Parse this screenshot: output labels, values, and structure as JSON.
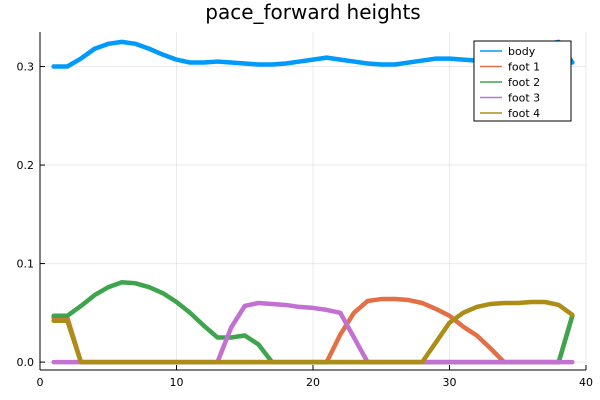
{
  "chart_data": {
    "type": "line",
    "title": "pace_forward heights",
    "xlabel": "",
    "ylabel": "",
    "xlim": [
      0,
      40
    ],
    "ylim": [
      -0.008,
      0.335
    ],
    "xticks": [
      0,
      10,
      20,
      30,
      40
    ],
    "xtick_labels": [
      "0",
      "10",
      "20",
      "30",
      "40"
    ],
    "yticks": [
      0.0,
      0.1,
      0.2,
      0.3
    ],
    "ytick_labels": [
      "0.0",
      "0.1",
      "0.2",
      "0.3"
    ],
    "grid": true,
    "legend_position": "top-right",
    "x": [
      1,
      2,
      3,
      4,
      5,
      6,
      7,
      8,
      9,
      10,
      11,
      12,
      13,
      14,
      15,
      16,
      17,
      18,
      19,
      20,
      21,
      22,
      23,
      24,
      25,
      26,
      27,
      28,
      29,
      30,
      31,
      32,
      33,
      34,
      35,
      36,
      37,
      38,
      39
    ],
    "series": [
      {
        "name": "body",
        "color": "#009AFA",
        "values": [
          0.3,
          0.3,
          0.308,
          0.318,
          0.323,
          0.325,
          0.323,
          0.318,
          0.312,
          0.307,
          0.304,
          0.304,
          0.305,
          0.304,
          0.303,
          0.302,
          0.302,
          0.303,
          0.305,
          0.307,
          0.309,
          0.307,
          0.305,
          0.303,
          0.302,
          0.302,
          0.304,
          0.306,
          0.308,
          0.308,
          0.307,
          0.306,
          0.306,
          0.306,
          0.309,
          0.315,
          0.322,
          0.325,
          0.304
        ]
      },
      {
        "name": "foot 1",
        "color": "#E36F47",
        "values": [
          0.045,
          0.045,
          0,
          0,
          0,
          0,
          0,
          0,
          0,
          0,
          0,
          0,
          0,
          0,
          0,
          0,
          0,
          0,
          0,
          0,
          0,
          0.028,
          0.05,
          0.062,
          0.064,
          0.064,
          0.063,
          0.06,
          0.054,
          0.047,
          0.036,
          0.027,
          0.014,
          0,
          0,
          0,
          0,
          0,
          0.047
        ]
      },
      {
        "name": "foot 2",
        "color": "#3EA44E",
        "values": [
          0.047,
          0.047,
          0.057,
          0.068,
          0.076,
          0.081,
          0.08,
          0.076,
          0.07,
          0.061,
          0.05,
          0.037,
          0.025,
          0.025,
          0.027,
          0.018,
          0,
          0,
          0,
          0,
          0,
          0,
          0,
          0,
          0,
          0,
          0,
          0,
          0,
          0,
          0,
          0,
          0,
          0,
          0,
          0,
          0,
          0,
          0.047
        ]
      },
      {
        "name": "foot 3",
        "color": "#C271D2",
        "values": [
          0,
          0,
          0,
          0,
          0,
          0,
          0,
          0,
          0,
          0,
          0,
          0,
          0,
          0.035,
          0.057,
          0.06,
          0.059,
          0.058,
          0.056,
          0.055,
          0.053,
          0.05,
          0.025,
          0,
          0,
          0,
          0,
          0,
          0,
          0,
          0,
          0,
          0,
          0,
          0,
          0,
          0,
          0,
          0
        ]
      },
      {
        "name": "foot 4",
        "color": "#AC8D18",
        "values": [
          0.042,
          0.042,
          0,
          0,
          0,
          0,
          0,
          0,
          0,
          0,
          0,
          0,
          0,
          0,
          0,
          0,
          0,
          0,
          0,
          0,
          0,
          0,
          0,
          0,
          0,
          0,
          0,
          0,
          0.02,
          0.04,
          0.05,
          0.056,
          0.059,
          0.06,
          0.06,
          0.061,
          0.061,
          0.058,
          0.048
        ]
      }
    ]
  }
}
